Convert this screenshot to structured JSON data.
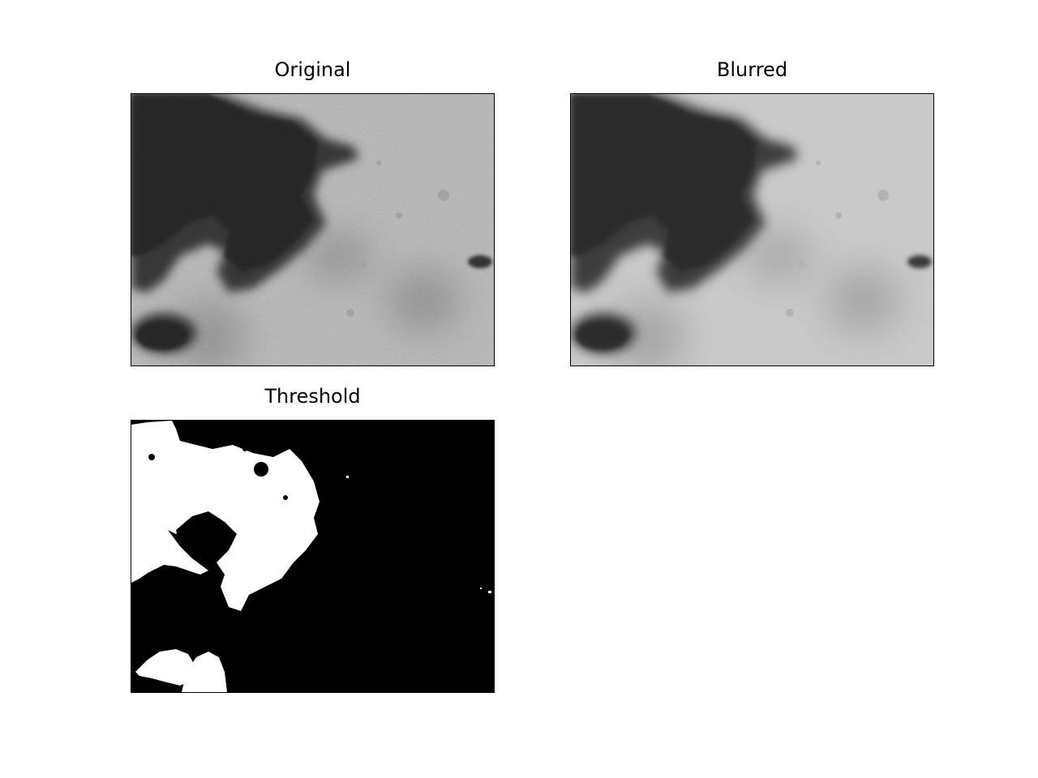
{
  "figure": {
    "panels": [
      {
        "title": "Original"
      },
      {
        "title": "Blurred"
      },
      {
        "title": "Threshold"
      }
    ]
  }
}
